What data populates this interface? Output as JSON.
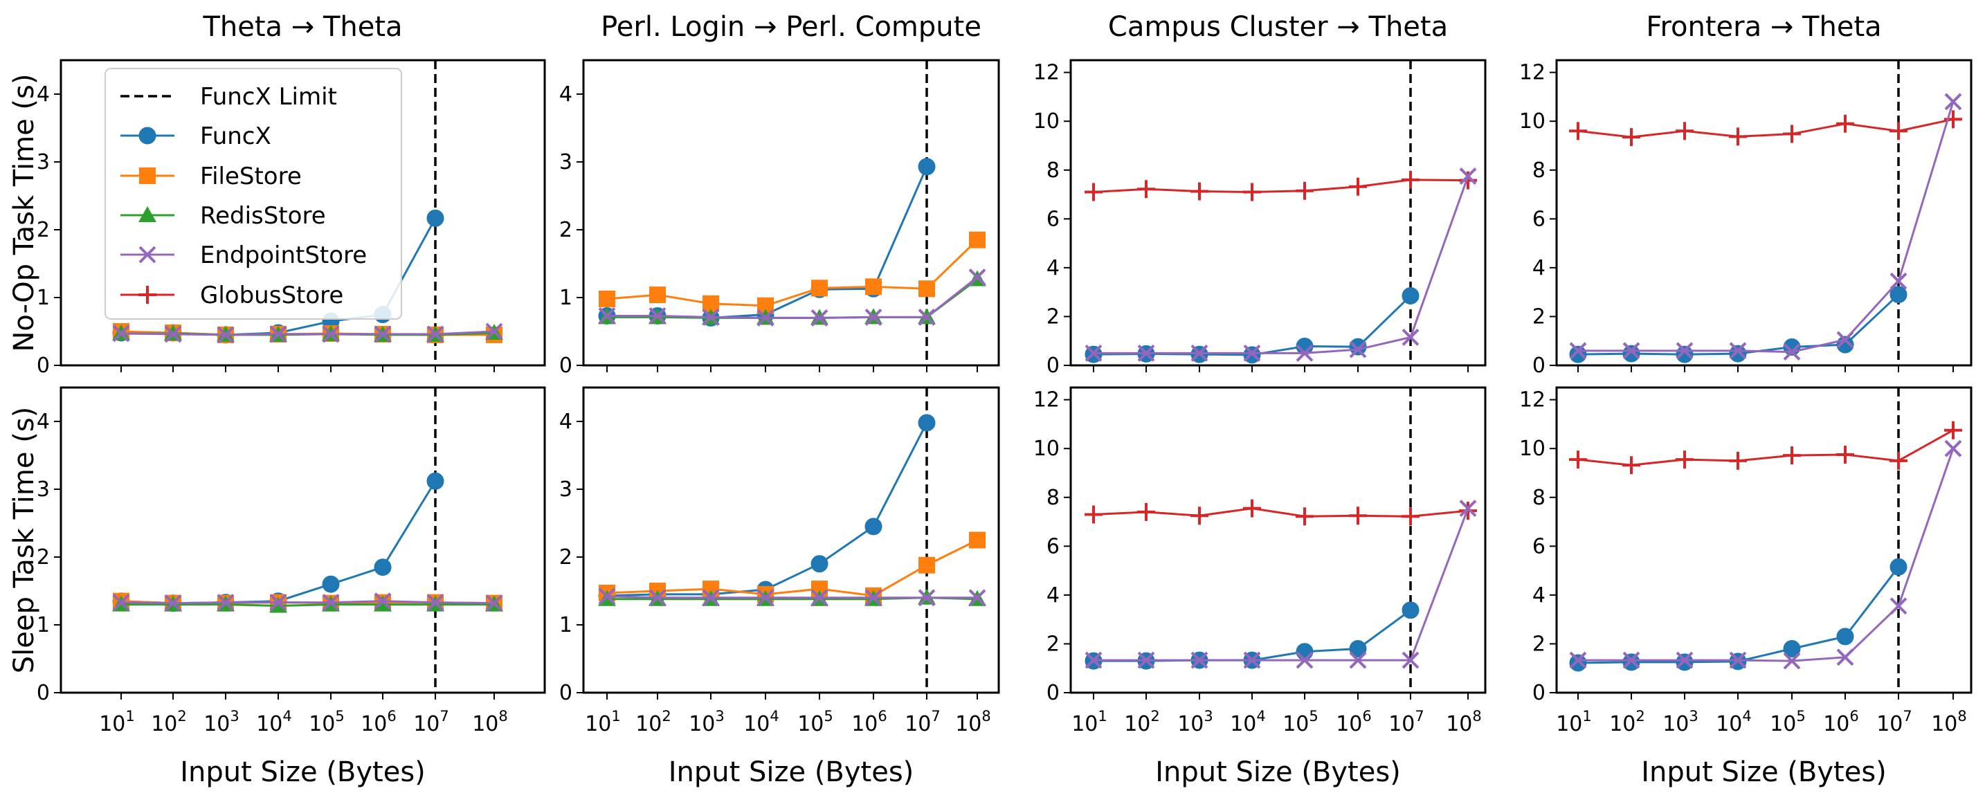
{
  "x_tick_labels": [
    {
      "base": "10",
      "exp": "1"
    },
    {
      "base": "10",
      "exp": "2"
    },
    {
      "base": "10",
      "exp": "3"
    },
    {
      "base": "10",
      "exp": "4"
    },
    {
      "base": "10",
      "exp": "5"
    },
    {
      "base": "10",
      "exp": "6"
    },
    {
      "base": "10",
      "exp": "7"
    },
    {
      "base": "10",
      "exp": "8"
    }
  ],
  "row_labels": [
    "No-Op Task Time (s)",
    "Sleep Task Time (s)"
  ],
  "x_axis_label": "Input Size (Bytes)",
  "column_titles": [
    "Theta → Theta",
    "Perl. Login → Perl. Compute",
    "Campus Cluster → Theta",
    "Frontera → Theta"
  ],
  "colors": {
    "FuncX": "#1f77b4",
    "FileStore": "#ff7f0e",
    "RedisStore": "#2ca02c",
    "EndpointStore": "#9467bd",
    "GlobusStore": "#d62728",
    "FuncX Limit": "#000000"
  },
  "legend": {
    "placement": "upper-left of first panel",
    "entries": [
      {
        "name": "FuncX Limit",
        "marker": "dashed-line"
      },
      {
        "name": "FuncX",
        "marker": "circle"
      },
      {
        "name": "FileStore",
        "marker": "square"
      },
      {
        "name": "RedisStore",
        "marker": "triangle"
      },
      {
        "name": "EndpointStore",
        "marker": "x"
      },
      {
        "name": "GlobusStore",
        "marker": "plus"
      }
    ]
  },
  "chart_data": [
    {
      "type": "line",
      "row": "No-Op",
      "title": "Theta → Theta",
      "xlabel": "",
      "ylabel": "No-Op Task Time (s)",
      "x_scale": "log",
      "x": [
        10,
        100,
        1000,
        10000,
        100000,
        1000000,
        10000000,
        100000000
      ],
      "ylim": [
        0,
        4.5
      ],
      "yticks": [
        0,
        1,
        2,
        3,
        4
      ],
      "funcx_limit_x": 10000000,
      "series": [
        {
          "name": "FuncX",
          "values": [
            0.48,
            0.48,
            0.45,
            0.48,
            0.65,
            0.75,
            2.17,
            null
          ]
        },
        {
          "name": "FileStore",
          "values": [
            0.5,
            0.48,
            0.45,
            0.46,
            0.47,
            0.46,
            0.45,
            0.45
          ]
        },
        {
          "name": "RedisStore",
          "values": [
            0.47,
            0.47,
            0.45,
            0.45,
            0.46,
            0.45,
            0.45,
            0.48
          ]
        },
        {
          "name": "EndpointStore",
          "values": [
            0.47,
            0.46,
            0.45,
            0.46,
            0.46,
            0.46,
            0.46,
            0.5
          ]
        }
      ]
    },
    {
      "type": "line",
      "row": "No-Op",
      "title": "Perl. Login → Perl. Compute",
      "xlabel": "",
      "ylabel": "",
      "x_scale": "log",
      "x": [
        10,
        100,
        1000,
        10000,
        100000,
        1000000,
        10000000,
        100000000
      ],
      "ylim": [
        0,
        4.5
      ],
      "yticks": [
        0,
        1,
        2,
        3,
        4
      ],
      "funcx_limit_x": 10000000,
      "series": [
        {
          "name": "FuncX",
          "values": [
            0.73,
            0.73,
            0.7,
            0.75,
            1.12,
            1.13,
            2.93,
            null
          ]
        },
        {
          "name": "FileStore",
          "values": [
            0.98,
            1.04,
            0.91,
            0.88,
            1.14,
            1.16,
            1.13,
            1.85
          ]
        },
        {
          "name": "RedisStore",
          "values": [
            0.71,
            0.71,
            0.7,
            0.7,
            0.7,
            0.71,
            0.71,
            1.27
          ]
        },
        {
          "name": "EndpointStore",
          "values": [
            0.73,
            0.73,
            0.71,
            0.7,
            0.7,
            0.71,
            0.71,
            1.3
          ]
        }
      ]
    },
    {
      "type": "line",
      "row": "No-Op",
      "title": "Campus Cluster → Theta",
      "xlabel": "",
      "ylabel": "",
      "x_scale": "log",
      "x": [
        10,
        100,
        1000,
        10000,
        100000,
        1000000,
        10000000,
        100000000
      ],
      "ylim": [
        0,
        12.5
      ],
      "yticks": [
        0,
        2,
        4,
        6,
        8,
        10,
        12
      ],
      "funcx_limit_x": 10000000,
      "series": [
        {
          "name": "GlobusStore",
          "values": [
            7.1,
            7.22,
            7.13,
            7.1,
            7.15,
            7.32,
            7.6,
            7.58
          ]
        },
        {
          "name": "FuncX",
          "values": [
            0.45,
            0.47,
            0.45,
            0.43,
            0.78,
            0.76,
            2.85,
            null
          ]
        },
        {
          "name": "EndpointStore",
          "values": [
            0.5,
            0.5,
            0.5,
            0.5,
            0.5,
            0.65,
            1.15,
            7.75
          ]
        }
      ]
    },
    {
      "type": "line",
      "row": "No-Op",
      "title": "Frontera → Theta",
      "xlabel": "",
      "ylabel": "",
      "x_scale": "log",
      "x": [
        10,
        100,
        1000,
        10000,
        100000,
        1000000,
        10000000,
        100000000
      ],
      "ylim": [
        0,
        12.5
      ],
      "yticks": [
        0,
        2,
        4,
        6,
        8,
        10,
        12
      ],
      "funcx_limit_x": 10000000,
      "series": [
        {
          "name": "GlobusStore",
          "values": [
            9.6,
            9.35,
            9.6,
            9.37,
            9.48,
            9.9,
            9.6,
            10.08
          ]
        },
        {
          "name": "FuncX",
          "values": [
            0.45,
            0.48,
            0.45,
            0.48,
            0.75,
            0.85,
            2.9,
            null
          ]
        },
        {
          "name": "EndpointStore",
          "values": [
            0.6,
            0.6,
            0.6,
            0.6,
            0.55,
            1.05,
            3.45,
            10.8
          ]
        }
      ]
    },
    {
      "type": "line",
      "row": "Sleep",
      "title": "",
      "xlabel": "Input Size (Bytes)",
      "ylabel": "Sleep Task Time (s)",
      "x_scale": "log",
      "x": [
        10,
        100,
        1000,
        10000,
        100000,
        1000000,
        10000000,
        100000000
      ],
      "ylim": [
        0,
        4.5
      ],
      "yticks": [
        0,
        1,
        2,
        3,
        4
      ],
      "funcx_limit_x": 10000000,
      "series": [
        {
          "name": "FuncX",
          "values": [
            1.35,
            1.32,
            1.33,
            1.35,
            1.6,
            1.85,
            3.12,
            null
          ]
        },
        {
          "name": "FileStore",
          "values": [
            1.35,
            1.32,
            1.32,
            1.33,
            1.32,
            1.33,
            1.33,
            1.32
          ]
        },
        {
          "name": "RedisStore",
          "values": [
            1.3,
            1.3,
            1.3,
            1.28,
            1.3,
            1.3,
            1.3,
            1.3
          ]
        },
        {
          "name": "EndpointStore",
          "values": [
            1.33,
            1.32,
            1.33,
            1.33,
            1.33,
            1.35,
            1.33,
            1.32
          ]
        }
      ]
    },
    {
      "type": "line",
      "row": "Sleep",
      "title": "",
      "xlabel": "Input Size (Bytes)",
      "ylabel": "",
      "x_scale": "log",
      "x": [
        10,
        100,
        1000,
        10000,
        100000,
        1000000,
        10000000,
        100000000
      ],
      "ylim": [
        0,
        4.5
      ],
      "yticks": [
        0,
        1,
        2,
        3,
        4
      ],
      "funcx_limit_x": 10000000,
      "series": [
        {
          "name": "FuncX",
          "values": [
            1.43,
            1.45,
            1.45,
            1.52,
            1.9,
            2.45,
            3.98,
            null
          ]
        },
        {
          "name": "FileStore",
          "values": [
            1.47,
            1.5,
            1.53,
            1.45,
            1.53,
            1.43,
            1.88,
            2.25
          ]
        },
        {
          "name": "RedisStore",
          "values": [
            1.38,
            1.38,
            1.38,
            1.38,
            1.38,
            1.38,
            1.4,
            1.38
          ]
        },
        {
          "name": "EndpointStore",
          "values": [
            1.42,
            1.4,
            1.4,
            1.4,
            1.4,
            1.4,
            1.4,
            1.4
          ]
        }
      ]
    },
    {
      "type": "line",
      "row": "Sleep",
      "title": "",
      "xlabel": "Input Size (Bytes)",
      "ylabel": "",
      "x_scale": "log",
      "x": [
        10,
        100,
        1000,
        10000,
        100000,
        1000000,
        10000000,
        100000000
      ],
      "ylim": [
        0,
        12.5
      ],
      "yticks": [
        0,
        2,
        4,
        6,
        8,
        10,
        12
      ],
      "funcx_limit_x": 10000000,
      "series": [
        {
          "name": "GlobusStore",
          "values": [
            7.3,
            7.4,
            7.25,
            7.55,
            7.22,
            7.25,
            7.22,
            7.45
          ]
        },
        {
          "name": "FuncX",
          "values": [
            1.3,
            1.3,
            1.33,
            1.33,
            1.68,
            1.8,
            3.38,
            null
          ]
        },
        {
          "name": "EndpointStore",
          "values": [
            1.33,
            1.33,
            1.33,
            1.33,
            1.33,
            1.33,
            1.33,
            7.55
          ]
        }
      ]
    },
    {
      "type": "line",
      "row": "Sleep",
      "title": "",
      "xlabel": "Input Size (Bytes)",
      "ylabel": "",
      "x_scale": "log",
      "x": [
        10,
        100,
        1000,
        10000,
        100000,
        1000000,
        10000000,
        100000000
      ],
      "ylim": [
        0,
        12.5
      ],
      "yticks": [
        0,
        2,
        4,
        6,
        8,
        10,
        12
      ],
      "funcx_limit_x": 10000000,
      "series": [
        {
          "name": "GlobusStore",
          "values": [
            9.55,
            9.32,
            9.55,
            9.5,
            9.72,
            9.75,
            9.5,
            10.75
          ]
        },
        {
          "name": "FuncX",
          "values": [
            1.22,
            1.25,
            1.25,
            1.28,
            1.8,
            2.3,
            5.15,
            null
          ]
        },
        {
          "name": "EndpointStore",
          "values": [
            1.33,
            1.33,
            1.33,
            1.33,
            1.3,
            1.45,
            3.55,
            10.0
          ]
        }
      ]
    }
  ]
}
